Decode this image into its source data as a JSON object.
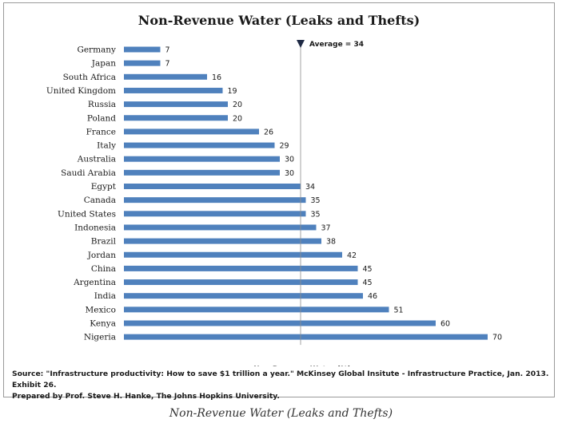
{
  "chart_data": {
    "type": "bar",
    "orientation": "horizontal",
    "title": "Non-Revenue Water (Leaks and Thefts)",
    "xlabel": "Non-Revenue Water (%)",
    "ylabel": "",
    "categories": [
      "Germany",
      "Japan",
      "South Africa",
      "United Kingdom",
      "Russia",
      "Poland",
      "France",
      "Italy",
      "Australia",
      "Saudi Arabia",
      "Egypt",
      "Canada",
      "United States",
      "Indonesia",
      "Brazil",
      "Jordan",
      "China",
      "Argentina",
      "India",
      "Mexico",
      "Kenya",
      "Nigeria"
    ],
    "values": [
      7,
      7,
      16,
      19,
      20,
      20,
      26,
      29,
      30,
      30,
      34,
      35,
      35,
      37,
      38,
      42,
      45,
      45,
      46,
      51,
      60,
      70
    ],
    "reference_line": {
      "value": 34,
      "label": "Average = 34"
    },
    "bar_color": "#4f81bd",
    "grid": false,
    "legend": "none"
  },
  "source_lines": [
    "Source: \"Infrastructure productivity: How to save $1 trillion a year.\" McKinsey Global Insitute - Infrastructure Practice, Jan. 2013. Exhibit 26.",
    "Prepared by Prof. Steve H. Hanke, The Johns Hopkins University."
  ],
  "caption": "Non-Revenue Water (Leaks and Thefts)"
}
